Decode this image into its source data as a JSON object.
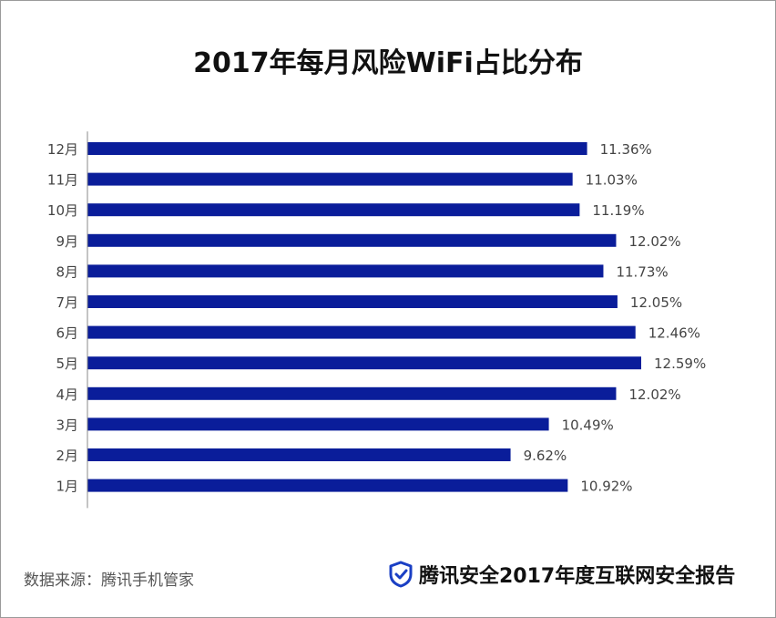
{
  "title": "2017年每月风险WiFi占比分布",
  "footer": {
    "source": "数据来源：腾讯手机管家",
    "brand": "腾讯安全2017年度互联网安全报告",
    "brand_icon": "shield-check-icon"
  },
  "colors": {
    "bar": "#0a1d9a",
    "axis": "#888888",
    "label": "#444444"
  },
  "chart_data": {
    "type": "bar",
    "orientation": "horizontal",
    "title": "2017年每月风险WiFi占比分布",
    "categories": [
      "12月",
      "11月",
      "10月",
      "9月",
      "8月",
      "7月",
      "6月",
      "5月",
      "4月",
      "3月",
      "2月",
      "1月"
    ],
    "values": [
      11.36,
      11.03,
      11.19,
      12.02,
      11.73,
      12.05,
      12.46,
      12.59,
      12.02,
      10.49,
      9.62,
      10.92
    ],
    "value_labels": [
      "11.36%",
      "11.03%",
      "11.19%",
      "12.02%",
      "11.73%",
      "12.05%",
      "12.46%",
      "12.59%",
      "12.02%",
      "10.49%",
      "9.62%",
      "10.92%"
    ],
    "unit": "%",
    "xlim": [
      0,
      12.59
    ],
    "grid": false,
    "legend": "none"
  }
}
